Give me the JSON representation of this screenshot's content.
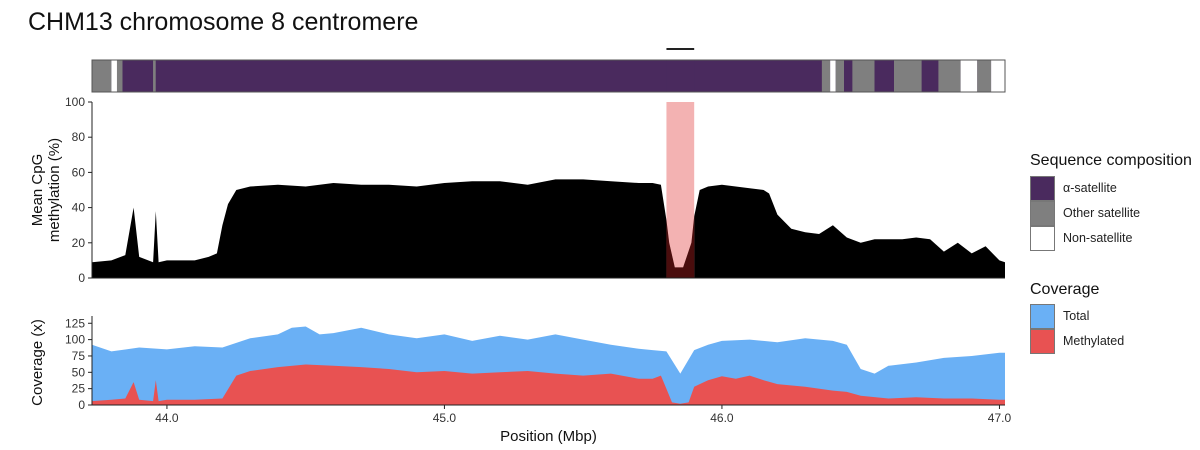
{
  "title": "CHM13 chromosome 8 centromere",
  "colors": {
    "alpha_satellite": "#4a2a5e",
    "other_satellite": "#7f7f7f",
    "non_satellite": "#ffffff",
    "methylation": "#000000",
    "highlight": "#f2aaaa",
    "highlight_dark": "#4a0d0d",
    "coverage_total": "#6ab0f5",
    "coverage_methylated": "#e85252"
  },
  "legend_composition": {
    "title": "Sequence composition",
    "items": [
      {
        "label": "α-satellite",
        "color": "#4a2a5e"
      },
      {
        "label": "Other satellite",
        "color": "#7f7f7f"
      },
      {
        "label": "Non-satellite",
        "color": "#ffffff"
      }
    ]
  },
  "legend_coverage": {
    "title": "Coverage",
    "items": [
      {
        "label": "Total",
        "color": "#6ab0f5"
      },
      {
        "label": "Methylated",
        "color": "#e85252"
      }
    ]
  },
  "chart_data": [
    {
      "type": "heatmap",
      "panel": "sequence composition track",
      "xlim": [
        43.73,
        47.02
      ],
      "segments": [
        {
          "start": 43.73,
          "end": 43.8,
          "class": "Other satellite"
        },
        {
          "start": 43.8,
          "end": 43.82,
          "class": "Non-satellite"
        },
        {
          "start": 43.82,
          "end": 43.84,
          "class": "Other satellite"
        },
        {
          "start": 43.84,
          "end": 43.95,
          "class": "α-satellite"
        },
        {
          "start": 43.95,
          "end": 43.96,
          "class": "Other satellite"
        },
        {
          "start": 43.96,
          "end": 45.8,
          "class": "α-satellite"
        },
        {
          "start": 45.8,
          "end": 45.9,
          "class": "α-satellite"
        },
        {
          "start": 45.9,
          "end": 46.36,
          "class": "α-satellite"
        },
        {
          "start": 46.36,
          "end": 46.39,
          "class": "Other satellite"
        },
        {
          "start": 46.39,
          "end": 46.41,
          "class": "Non-satellite"
        },
        {
          "start": 46.41,
          "end": 46.44,
          "class": "Other satellite"
        },
        {
          "start": 46.44,
          "end": 46.47,
          "class": "α-satellite"
        },
        {
          "start": 46.47,
          "end": 46.55,
          "class": "Other satellite"
        },
        {
          "start": 46.55,
          "end": 46.62,
          "class": "α-satellite"
        },
        {
          "start": 46.62,
          "end": 46.72,
          "class": "Other satellite"
        },
        {
          "start": 46.72,
          "end": 46.78,
          "class": "α-satellite"
        },
        {
          "start": 46.78,
          "end": 46.86,
          "class": "Other satellite"
        },
        {
          "start": 46.86,
          "end": 46.92,
          "class": "Non-satellite"
        },
        {
          "start": 46.92,
          "end": 46.97,
          "class": "Other satellite"
        },
        {
          "start": 46.97,
          "end": 47.02,
          "class": "Non-satellite"
        }
      ],
      "marker_bar": {
        "start": 45.8,
        "end": 45.9
      }
    },
    {
      "type": "area",
      "panel": "methylation",
      "ylabel": [
        "Mean CpG",
        "methylation (%)"
      ],
      "xlim": [
        43.73,
        47.02
      ],
      "ylim": [
        0,
        100
      ],
      "yticks": [
        0,
        20,
        40,
        60,
        80,
        100
      ],
      "highlight_region": {
        "start": 45.8,
        "end": 45.9
      },
      "series": [
        {
          "values_x": [
            43.73,
            43.8,
            43.85,
            43.88,
            43.9,
            43.95,
            43.96,
            43.97,
            44.0,
            44.1,
            44.15,
            44.18,
            44.2,
            44.22,
            44.25,
            44.3,
            44.4,
            44.5,
            44.6,
            44.7,
            44.8,
            44.9,
            45.0,
            45.1,
            45.2,
            45.3,
            45.4,
            45.5,
            45.6,
            45.7,
            45.75,
            45.78,
            45.8,
            45.81,
            45.83,
            45.86,
            45.89,
            45.9,
            45.92,
            45.95,
            46.0,
            46.05,
            46.1,
            46.15,
            46.17,
            46.2,
            46.25,
            46.3,
            46.35,
            46.4,
            46.45,
            46.5,
            46.55,
            46.6,
            46.65,
            46.7,
            46.75,
            46.8,
            46.85,
            46.9,
            46.95,
            47.0,
            47.02
          ],
          "values_y": [
            9,
            10,
            13,
            40,
            12,
            9,
            38,
            9,
            10,
            10,
            12,
            14,
            30,
            42,
            50,
            52,
            53,
            52,
            54,
            53,
            53,
            52,
            54,
            55,
            55,
            53,
            56,
            56,
            55,
            54,
            54,
            53,
            33,
            20,
            6,
            6,
            20,
            35,
            50,
            52,
            53,
            52,
            51,
            50,
            48,
            36,
            28,
            26,
            25,
            30,
            23,
            20,
            22,
            22,
            22,
            23,
            22,
            15,
            20,
            14,
            18,
            10,
            9
          ]
        }
      ]
    },
    {
      "type": "area",
      "panel": "coverage",
      "ylabel": "Coverage (x)",
      "xlabel": "Position (Mbp)",
      "xlim": [
        43.73,
        47.02
      ],
      "ylim": [
        0,
        130
      ],
      "yticks": [
        0,
        25,
        50,
        75,
        100,
        125
      ],
      "xticks": [
        "44.0",
        "45.0",
        "46.0",
        "47.0"
      ],
      "series": [
        {
          "name": "Total",
          "x": [
            43.73,
            43.8,
            43.9,
            44.0,
            44.1,
            44.2,
            44.3,
            44.4,
            44.45,
            44.5,
            44.55,
            44.6,
            44.7,
            44.8,
            44.9,
            45.0,
            45.1,
            45.2,
            45.3,
            45.4,
            45.5,
            45.6,
            45.7,
            45.75,
            45.8,
            45.85,
            45.9,
            45.95,
            46.0,
            46.1,
            46.2,
            46.3,
            46.4,
            46.45,
            46.5,
            46.55,
            46.6,
            46.7,
            46.8,
            46.9,
            47.0,
            47.02
          ],
          "y": [
            92,
            82,
            88,
            85,
            90,
            88,
            102,
            108,
            118,
            120,
            108,
            110,
            118,
            108,
            102,
            108,
            98,
            106,
            100,
            108,
            100,
            92,
            86,
            84,
            82,
            48,
            84,
            92,
            98,
            100,
            96,
            102,
            98,
            92,
            55,
            48,
            60,
            65,
            72,
            75,
            80,
            80
          ]
        },
        {
          "name": "Methylated",
          "x": [
            43.73,
            43.8,
            43.85,
            43.88,
            43.9,
            43.95,
            43.96,
            43.97,
            44.0,
            44.1,
            44.2,
            44.25,
            44.3,
            44.4,
            44.5,
            44.6,
            44.7,
            44.8,
            44.9,
            45.0,
            45.1,
            45.2,
            45.3,
            45.4,
            45.5,
            45.6,
            45.7,
            45.75,
            45.78,
            45.8,
            45.82,
            45.85,
            45.88,
            45.9,
            45.95,
            46.0,
            46.05,
            46.1,
            46.15,
            46.2,
            46.3,
            46.4,
            46.45,
            46.5,
            46.6,
            46.7,
            46.8,
            46.9,
            47.0,
            47.02
          ],
          "y": [
            6,
            8,
            10,
            35,
            8,
            6,
            38,
            6,
            8,
            8,
            10,
            45,
            52,
            58,
            62,
            60,
            58,
            55,
            50,
            52,
            48,
            50,
            52,
            48,
            45,
            48,
            40,
            40,
            45,
            25,
            4,
            2,
            4,
            28,
            38,
            44,
            40,
            45,
            38,
            32,
            28,
            22,
            20,
            14,
            10,
            12,
            10,
            10,
            8,
            8
          ]
        }
      ]
    }
  ]
}
